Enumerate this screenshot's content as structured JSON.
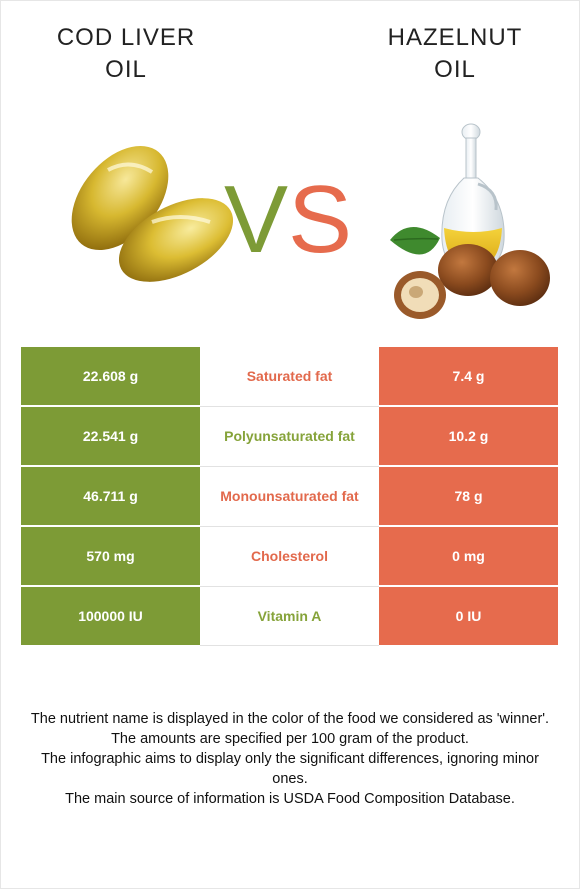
{
  "left_food": {
    "title_line1": "COD LIVER",
    "title_line2": "OIL",
    "color": "#7d9b36"
  },
  "right_food": {
    "title_line1": "HAZELNUT",
    "title_line2": "OIL",
    "color": "#e66b4d"
  },
  "vs": {
    "v": "V",
    "s": "S"
  },
  "rows": [
    {
      "left": "22.608 g",
      "nutrient": "Saturated fat",
      "right": "7.4 g",
      "winner": "right"
    },
    {
      "left": "22.541 g",
      "nutrient": "Polyunsaturated fat",
      "right": "10.2 g",
      "winner": "left"
    },
    {
      "left": "46.711 g",
      "nutrient": "Monounsaturated fat",
      "right": "78 g",
      "winner": "right"
    },
    {
      "left": "570 mg",
      "nutrient": "Cholesterol",
      "right": "0 mg",
      "winner": "right"
    },
    {
      "left": "100000 IU",
      "nutrient": "Vitamin A",
      "right": "0 IU",
      "winner": "left"
    }
  ],
  "footer": {
    "line1": "The nutrient name is displayed in the color of the food we considered as 'winner'.",
    "line2": "The amounts are specified per 100 gram of the product.",
    "line3": "The infographic aims to display only the significant differences, ignoring minor ones.",
    "line4": "The main source of information is USDA Food Composition Database."
  }
}
